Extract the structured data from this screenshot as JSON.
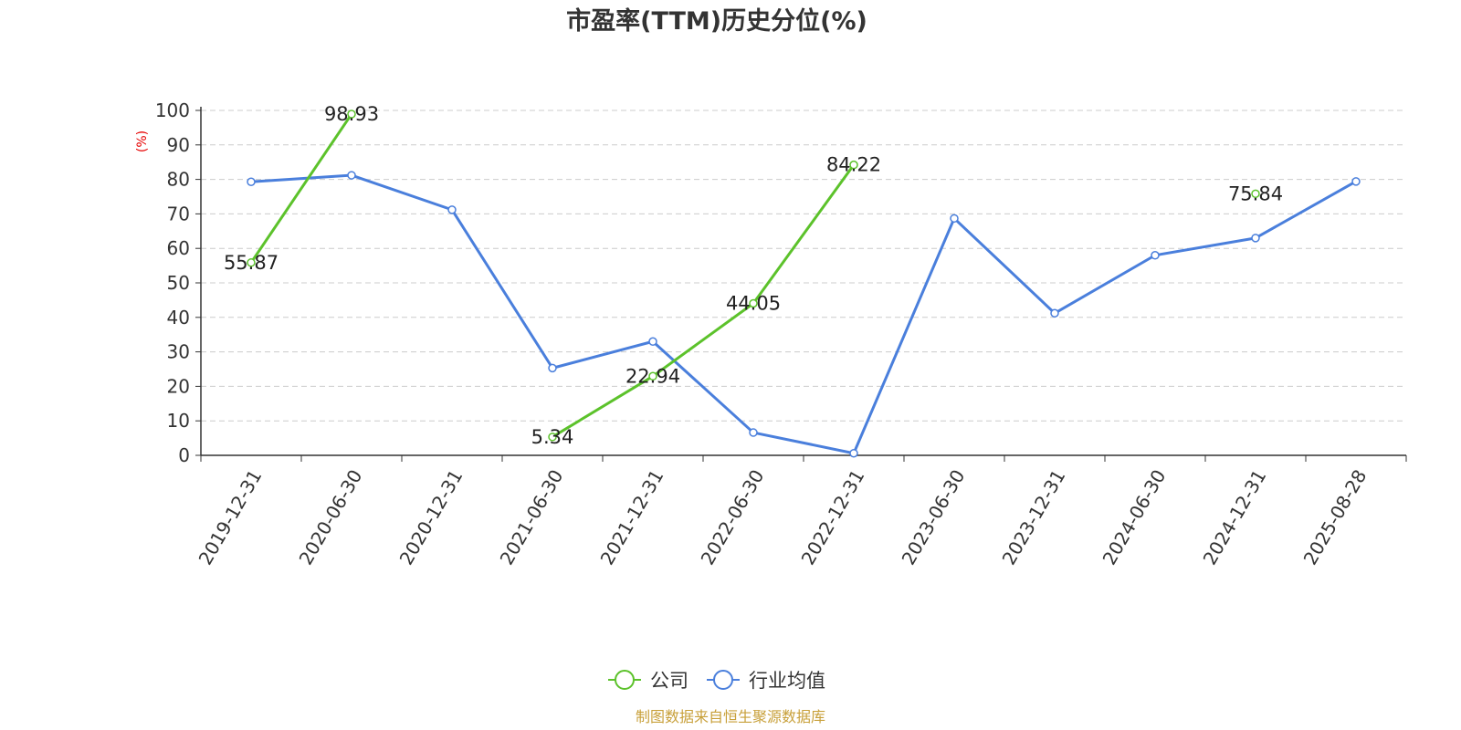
{
  "chart_data": {
    "type": "line",
    "title": "市盈率(TTM)历史分位(%)",
    "ylabel": "(%)",
    "ylim": [
      0,
      100
    ],
    "yticks": [
      0,
      10,
      20,
      30,
      40,
      50,
      60,
      70,
      80,
      90,
      100
    ],
    "grid": true,
    "legend_position": "bottom",
    "categories": [
      "2019-12-31",
      "2020-06-30",
      "2020-12-31",
      "2021-06-30",
      "2021-12-31",
      "2022-06-30",
      "2022-12-31",
      "2023-06-30",
      "2023-12-31",
      "2024-06-30",
      "2024-12-31",
      "2025-08-28"
    ],
    "series": [
      {
        "name": "公司",
        "color": "#5cc22b",
        "values": [
          55.87,
          98.93,
          null,
          5.34,
          22.94,
          44.05,
          84.22,
          null,
          null,
          null,
          75.84,
          null
        ],
        "labels": [
          "55.87",
          "98.93",
          "",
          "5.34",
          "22.94",
          "44.05",
          "84.22",
          "",
          "",
          "",
          "75.84",
          ""
        ]
      },
      {
        "name": "行业均值",
        "color": "#4a7fdc",
        "values": [
          79.3,
          81.2,
          71.2,
          25.3,
          33.0,
          6.6,
          0.6,
          68.7,
          41.2,
          58.0,
          63.0,
          79.4
        ]
      }
    ],
    "source": "制图数据来自恒生聚源数据库"
  }
}
